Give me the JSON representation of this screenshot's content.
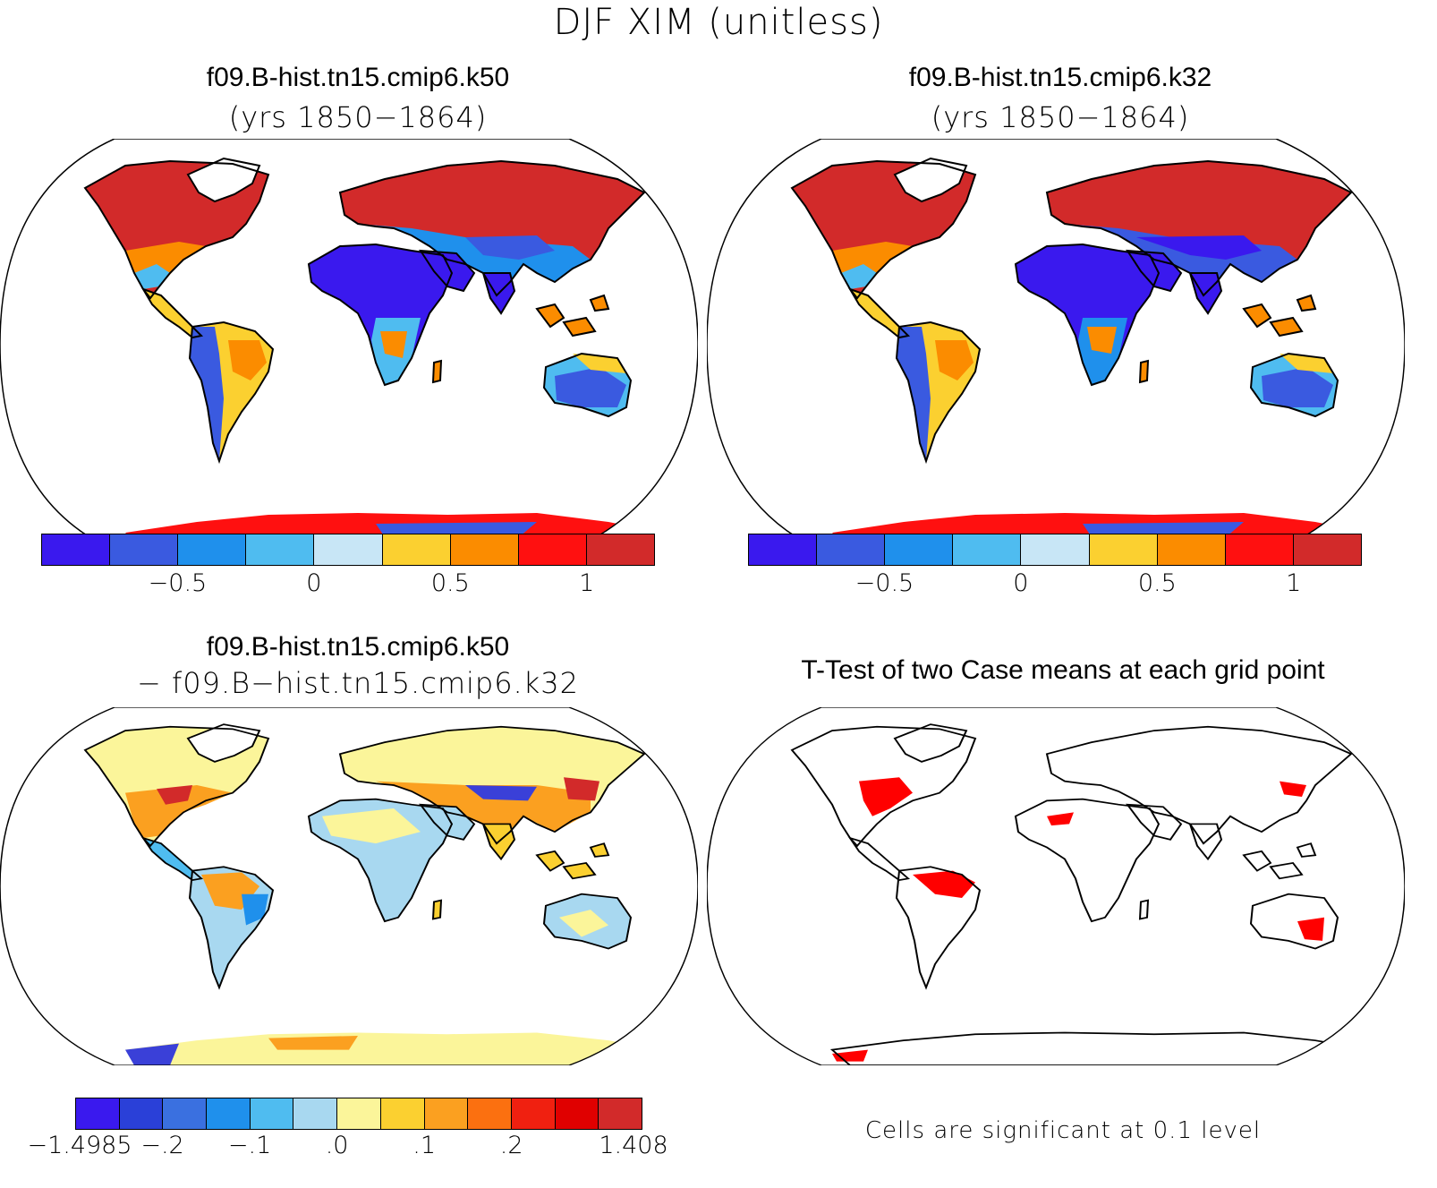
{
  "title": "DJF XIM (unitless)",
  "panels": {
    "top_left": {
      "title": "f09.B-hist.tn15.cmip6.k50",
      "subtitle": "(yrs 1850−1864)"
    },
    "top_right": {
      "title": "f09.B-hist.tn15.cmip6.k32",
      "subtitle": "(yrs 1850−1864)"
    },
    "bottom_left": {
      "title": "f09.B-hist.tn15.cmip6.k50",
      "subtitle": "− f09.B−hist.tn15.cmip6.k32"
    },
    "bottom_right": {
      "title": "T-Test of two Case means at each grid point",
      "note": "Cells are significant at 0.1 level"
    }
  },
  "colorbar_case": {
    "colors": [
      "#3a19ee",
      "#3a5ae0",
      "#1f90ec",
      "#4fbcf0",
      "#c8e6f6",
      "#fbd030",
      "#fb8c00",
      "#ff1010",
      "#d22a2a"
    ],
    "tick_labels": [
      "−0.5",
      "0",
      "0.5",
      "1"
    ],
    "tick_boundaries": [
      2,
      4,
      6,
      8
    ]
  },
  "colorbar_diff": {
    "colors": [
      "#3a19ee",
      "#2a40d8",
      "#3a70e0",
      "#1f90ec",
      "#4fbcf0",
      "#a8d8f0",
      "#fbf59a",
      "#fbd030",
      "#fba020",
      "#fb7010",
      "#f02010",
      "#e00000",
      "#d22a2a"
    ],
    "tick_labels": [
      "−1.4985",
      "−.2",
      "−.1",
      ".0",
      ".1",
      ".2",
      "1.408"
    ],
    "tick_boundaries": [
      0,
      2,
      4,
      6,
      8,
      10,
      12
    ]
  },
  "colors": {
    "land_high": "#d22a2a",
    "land_red": "#ff1010",
    "land_orange": "#fb8c00",
    "land_yellow": "#fbd030",
    "land_light": "#c8e6f6",
    "land_lightblue": "#4fbcf0",
    "land_blue": "#3a5ae0",
    "land_deep": "#3a19ee",
    "diff_base": "#fbf59a",
    "significant": "#ff0000"
  }
}
